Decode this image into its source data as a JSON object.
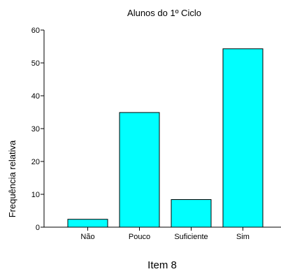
{
  "chart_data": {
    "type": "bar",
    "title": "Alunos do 1º Ciclo",
    "xlabel": "Item 8",
    "ylabel": "Frequência relativa",
    "categories": [
      "Não",
      "Pouco",
      "Suficiente",
      "Sim"
    ],
    "values": [
      2.4,
      34.9,
      8.4,
      54.3
    ],
    "ylim": [
      0,
      60
    ],
    "yticks": [
      "0",
      "10",
      "20",
      "30",
      "40",
      "50",
      "60"
    ],
    "grid": false,
    "bar_color": "#00ffff",
    "bar_edge_color": "#000000"
  }
}
